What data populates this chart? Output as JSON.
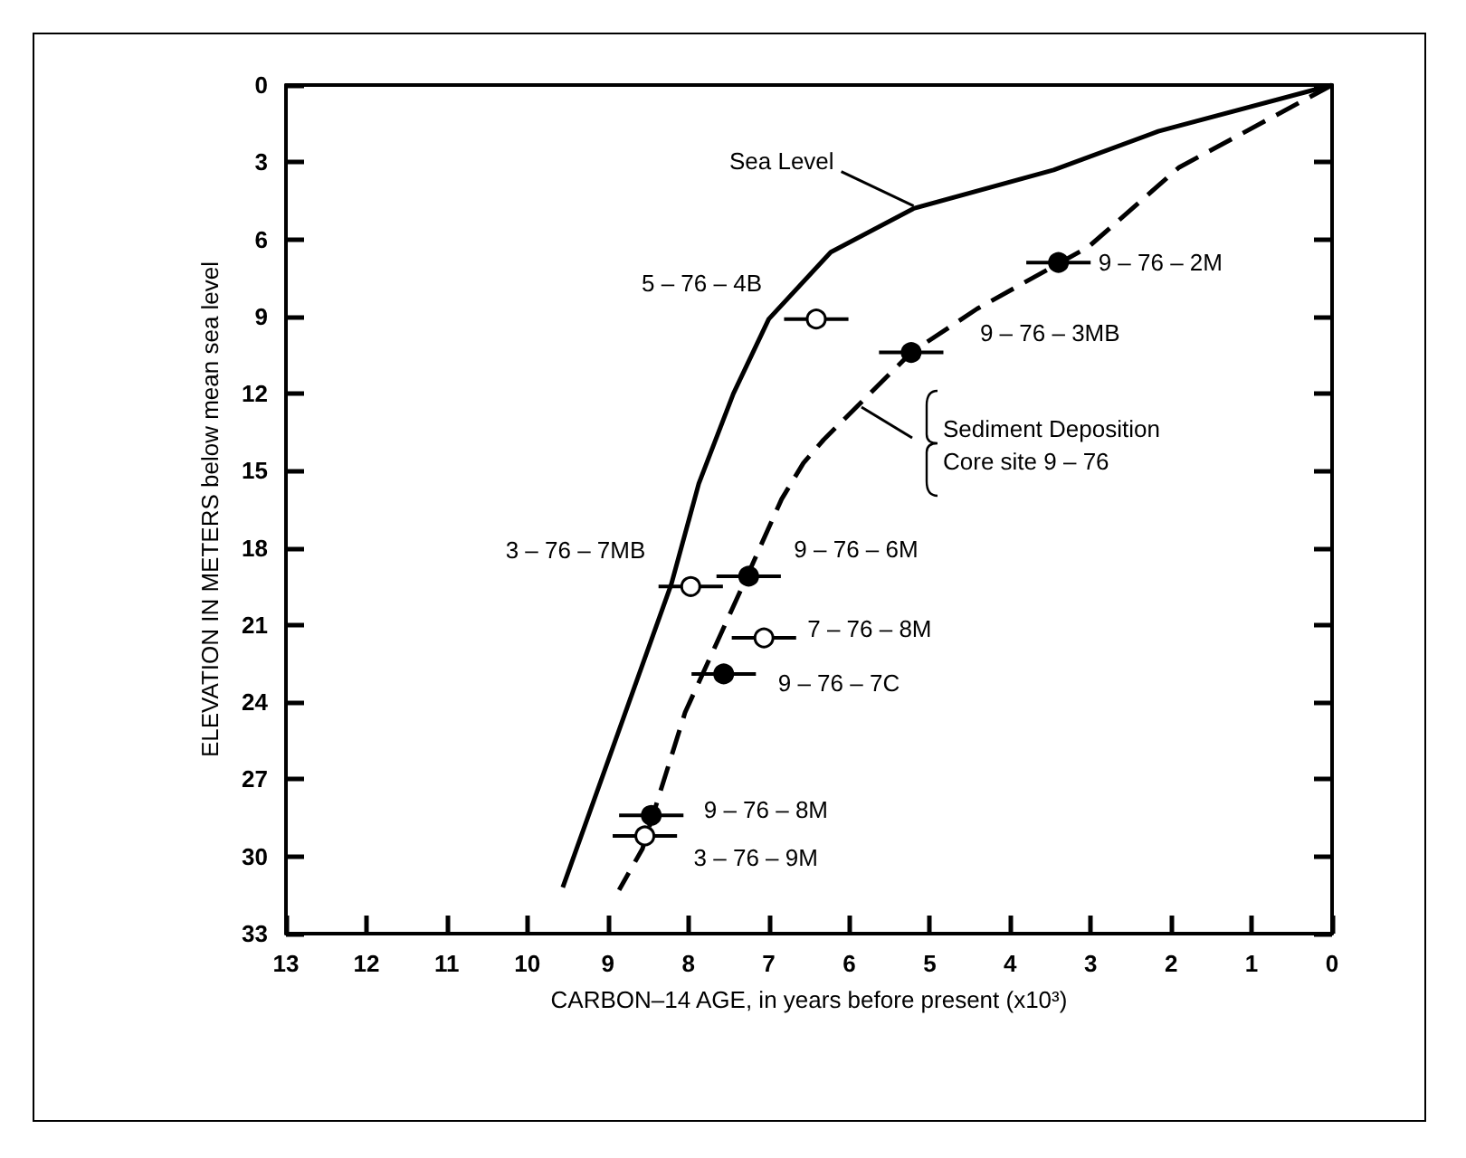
{
  "chart_data": {
    "type": "line",
    "xlabel": "CARBON–14 AGE, in years before present (x10³)",
    "ylabel": "ELEVATION IN METERS below mean sea level",
    "xlim": [
      13,
      0
    ],
    "xticks": [
      13,
      12,
      11,
      10,
      9,
      8,
      7,
      6,
      5,
      4,
      3,
      2,
      1,
      0
    ],
    "ylim": [
      33,
      0
    ],
    "yticks": [
      0,
      3,
      6,
      9,
      12,
      15,
      18,
      21,
      24,
      27,
      30,
      33
    ],
    "grid": false,
    "series": [
      {
        "type": "line",
        "color": "#000000",
        "line_style": "solid",
        "marker": "none",
        "x": [
          0,
          2.16,
          3.46,
          5.2,
          6.23,
          7.0,
          7.44,
          7.87,
          8.21,
          9.56
        ],
        "values": [
          0,
          1.8,
          3.3,
          4.8,
          6.5,
          9.1,
          12,
          15.5,
          19.4,
          31.2
        ]
      },
      {
        "type": "line",
        "color": "#000000",
        "line_style": "dashed",
        "marker": "none",
        "x": [
          0,
          1.9,
          3.03,
          4.41,
          5.23,
          6.32,
          6.57,
          6.84,
          7.27,
          8.04,
          8.57,
          8.86
        ],
        "values": [
          0,
          3.2,
          6.3,
          8.7,
          10.4,
          13.8,
          14.7,
          16.1,
          19.1,
          24.4,
          29.7,
          31.3
        ]
      },
      {
        "type": "scatter",
        "color": "#000000",
        "marker": "circle",
        "x": [
          3.4,
          5.23,
          7.25,
          7.56,
          8.46
        ],
        "values": [
          6.9,
          10.4,
          19.1,
          22.9,
          28.4
        ],
        "xerrors": [
          0.4,
          0.4,
          0.4,
          0.4,
          0.4
        ]
      },
      {
        "type": "scatter",
        "color": "#ffffff",
        "marker": "circle",
        "x": [
          6.41,
          7.97,
          7.06,
          8.54
        ],
        "values": [
          9.1,
          19.5,
          21.5,
          29.2
        ],
        "xerrors": [
          0.4,
          0.4,
          0.4,
          0.4
        ]
      }
    ],
    "annotations": [
      {
        "text": "9 – 76 – 2M",
        "x": 3.4,
        "y": 6.9
      },
      {
        "text": "9 – 76 – 3MB",
        "x": 5.23,
        "y": 10.4
      },
      {
        "text": "5 – 76 – 4B",
        "x": 6.41,
        "y": 9.1
      },
      {
        "text": "9 – 76 – 6M",
        "x": 7.25,
        "y": 19.1
      },
      {
        "text": "3 – 76 – 7MB",
        "x": 7.97,
        "y": 19.5
      },
      {
        "text": "7 – 76 – 8M",
        "x": 7.06,
        "y": 21.5
      },
      {
        "text": "9 – 76 – 7C",
        "x": 7.56,
        "y": 22.9
      },
      {
        "text": "9 – 76 – 8M",
        "x": 8.46,
        "y": 28.4
      },
      {
        "text": "3 – 76 – 9M",
        "x": 8.54,
        "y": 29.2
      },
      {
        "text": "Sea Level",
        "x": 5.2,
        "y": 4.7
      },
      "Sediment Deposition\nCore site 9 – 76"
    ]
  }
}
